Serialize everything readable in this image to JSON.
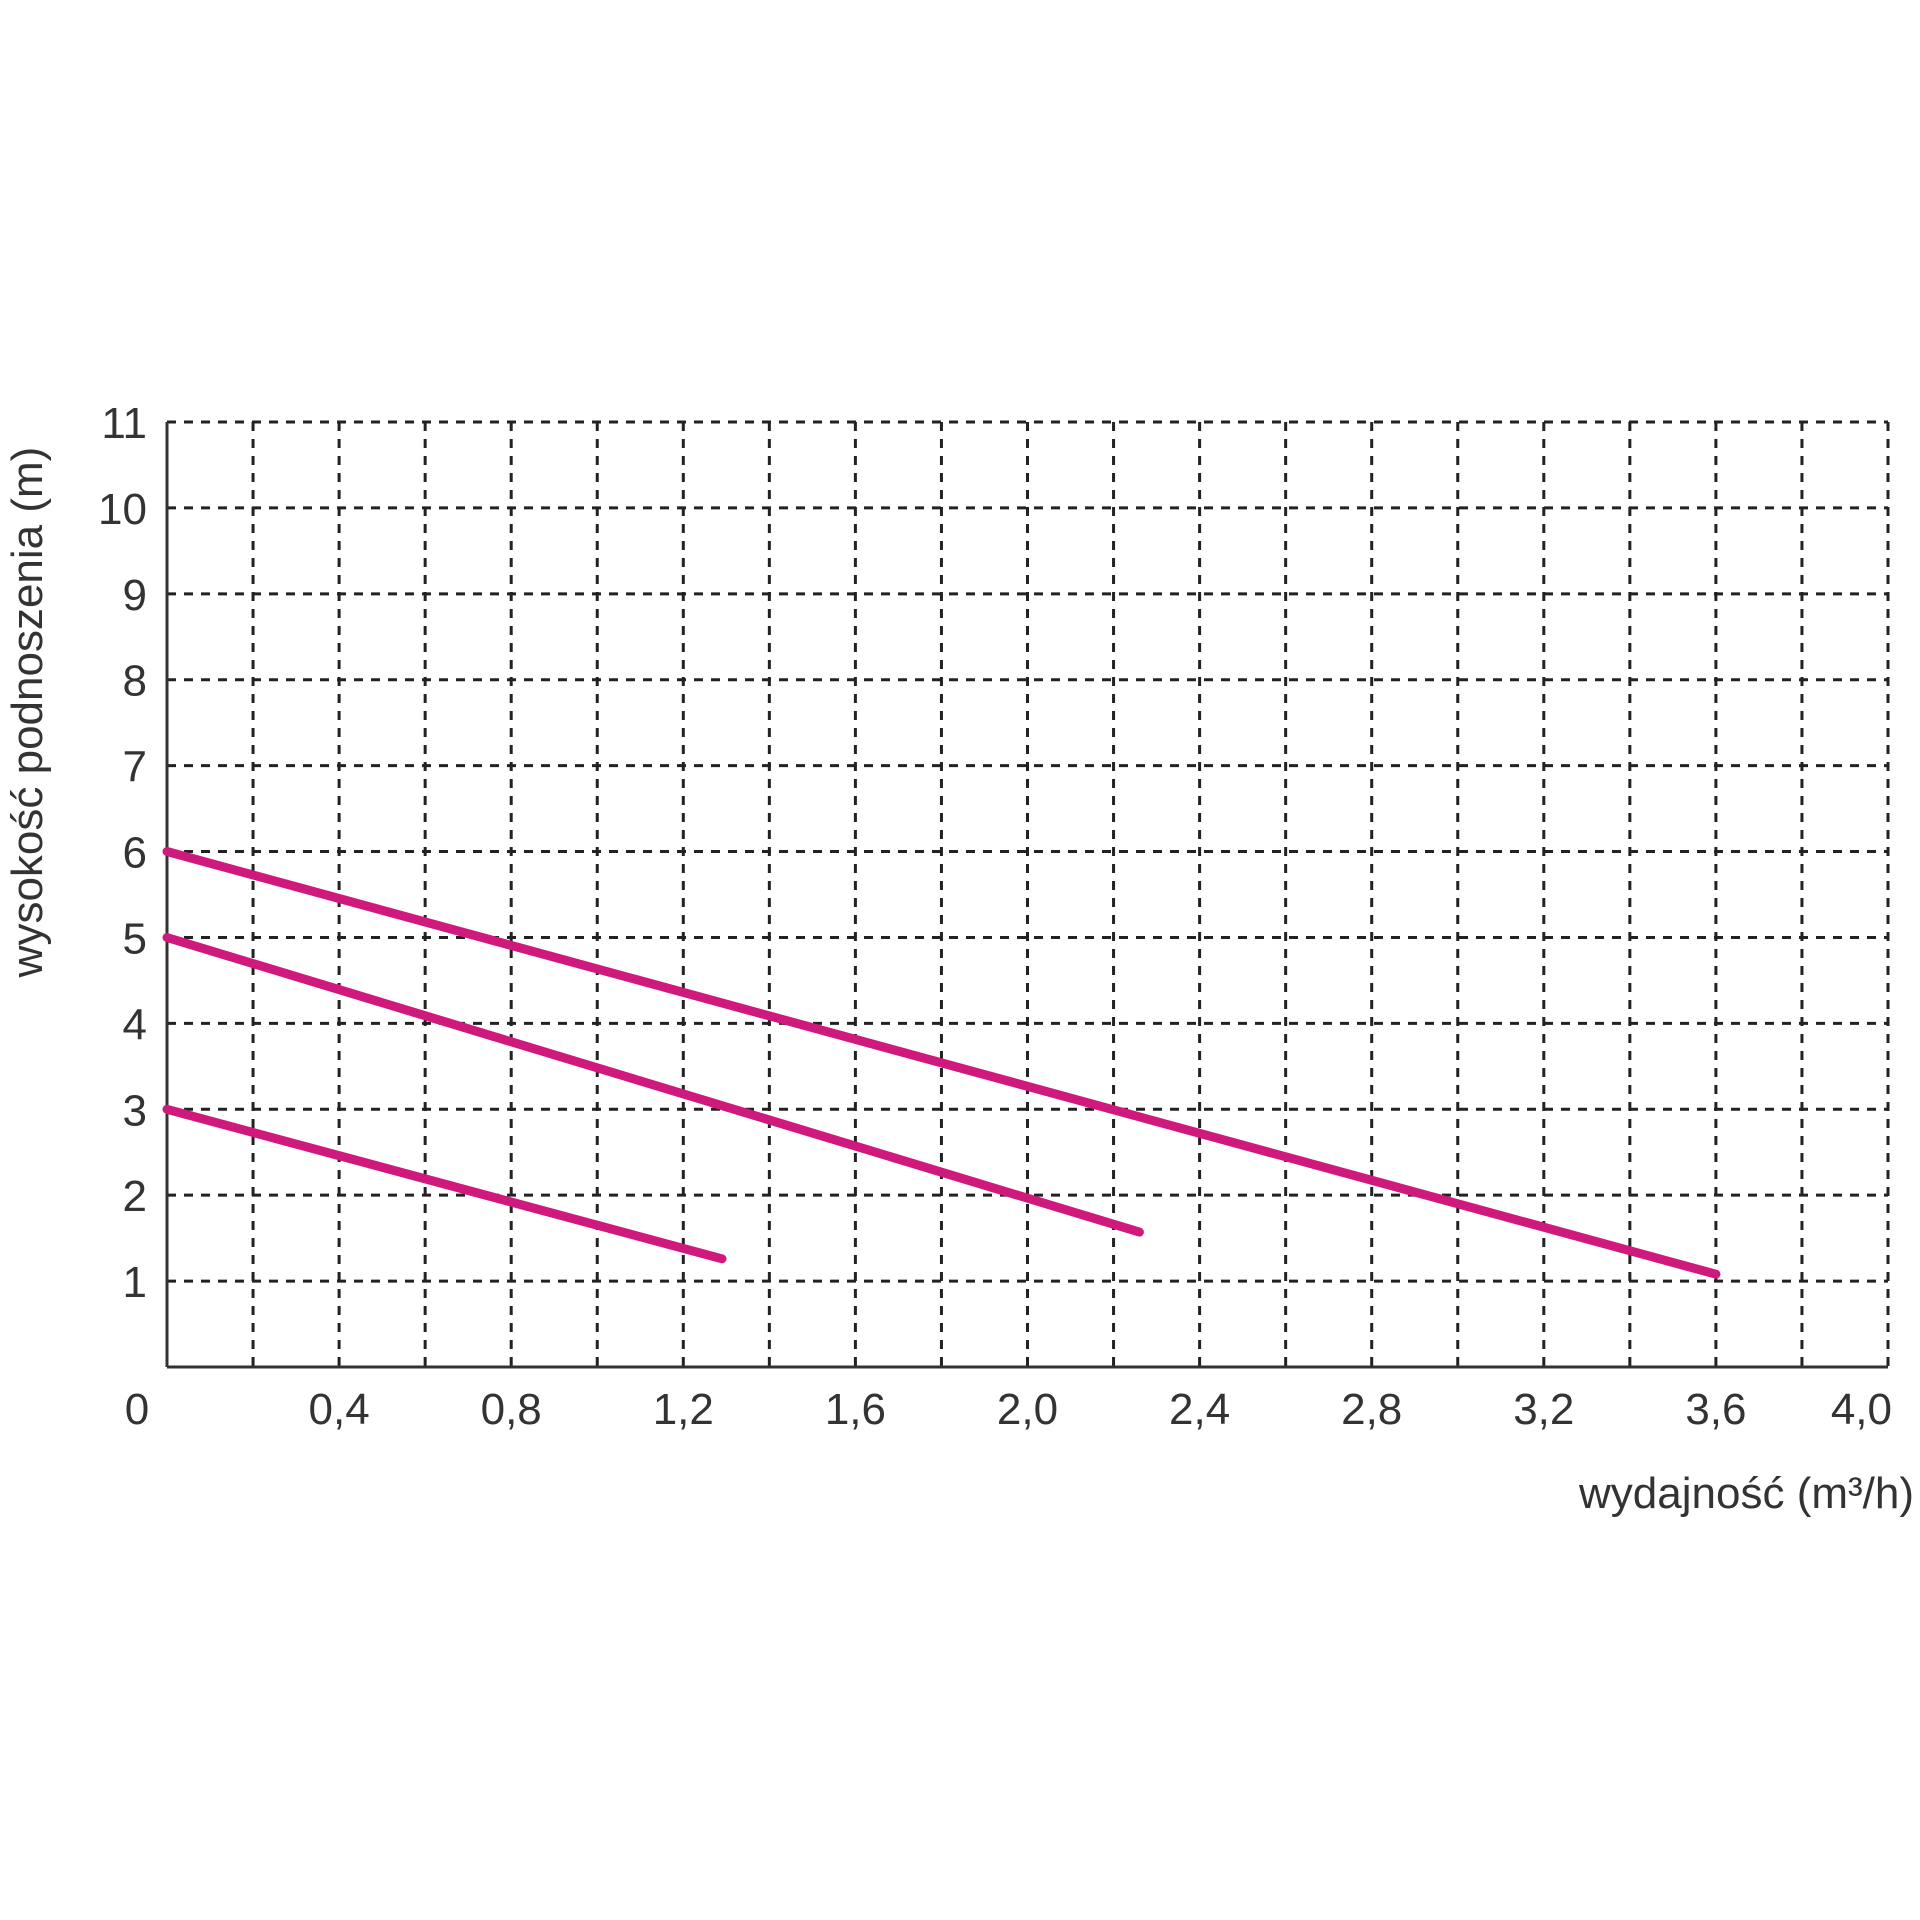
{
  "chart_data": {
    "type": "line",
    "xlabel": "wydajność (m³/h)",
    "ylabel": "wysokość podnoszenia (m)",
    "xlim": [
      0,
      4.0
    ],
    "ylim": [
      0,
      11
    ],
    "x_ticks": [
      "0",
      "0,4",
      "0,8",
      "1,2",
      "1,6",
      "2,0",
      "2,4",
      "2,8",
      "3,2",
      "3,6",
      "4,0"
    ],
    "x_tick_values": [
      0,
      0.4,
      0.8,
      1.2,
      1.6,
      2.0,
      2.4,
      2.8,
      3.2,
      3.6,
      4.0
    ],
    "y_ticks": [
      "1",
      "2",
      "3",
      "4",
      "5",
      "6",
      "7",
      "8",
      "9",
      "10",
      "11"
    ],
    "y_tick_values": [
      1,
      2,
      3,
      4,
      5,
      6,
      7,
      8,
      9,
      10,
      11
    ],
    "x_grid_step": 0.2,
    "y_grid_step": 1,
    "grid": true,
    "line_color": "#d0197c",
    "series": [
      {
        "x": [
          0,
          3.6
        ],
        "y": [
          6.0,
          1.08
        ]
      },
      {
        "x": [
          0,
          2.26
        ],
        "y": [
          5.0,
          1.57
        ]
      },
      {
        "x": [
          0,
          1.29
        ],
        "y": [
          3.0,
          1.26
        ]
      }
    ]
  }
}
